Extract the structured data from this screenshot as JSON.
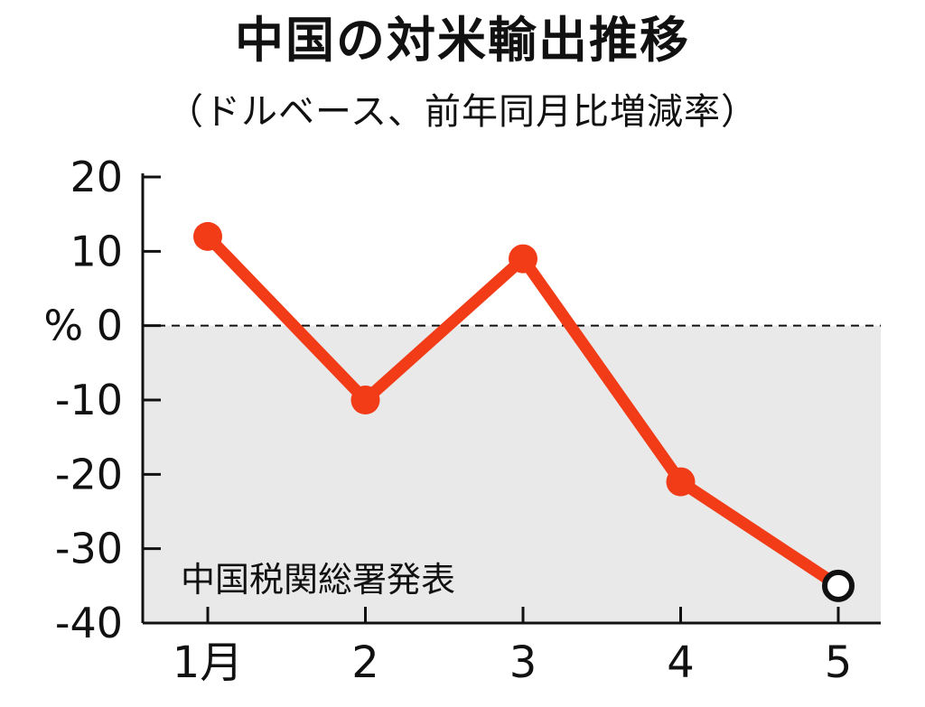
{
  "chart_data": {
    "type": "line",
    "title": "中国の対米輸出推移",
    "subtitle": "（ドルベース、前年同月比増減率）",
    "ylabel": "%",
    "categories": [
      "1月",
      "2",
      "3",
      "4",
      "5"
    ],
    "series": [
      {
        "values": [
          12,
          -10,
          9,
          -21,
          -35
        ],
        "color": "#f23b17"
      }
    ],
    "last_point_style": "hollow",
    "ylim": [
      -40,
      20
    ],
    "yticks": [
      20,
      10,
      0,
      -10,
      -20,
      -30,
      -40
    ],
    "ytick_labels": [
      "20",
      "10",
      "% 0",
      "-10",
      "-20",
      "-30",
      "-40"
    ],
    "zero_line": "dashed",
    "negative_region_shaded": true,
    "negative_region_color": "#e9e9e9",
    "source_note": "中国税関総署発表",
    "grid": false
  }
}
